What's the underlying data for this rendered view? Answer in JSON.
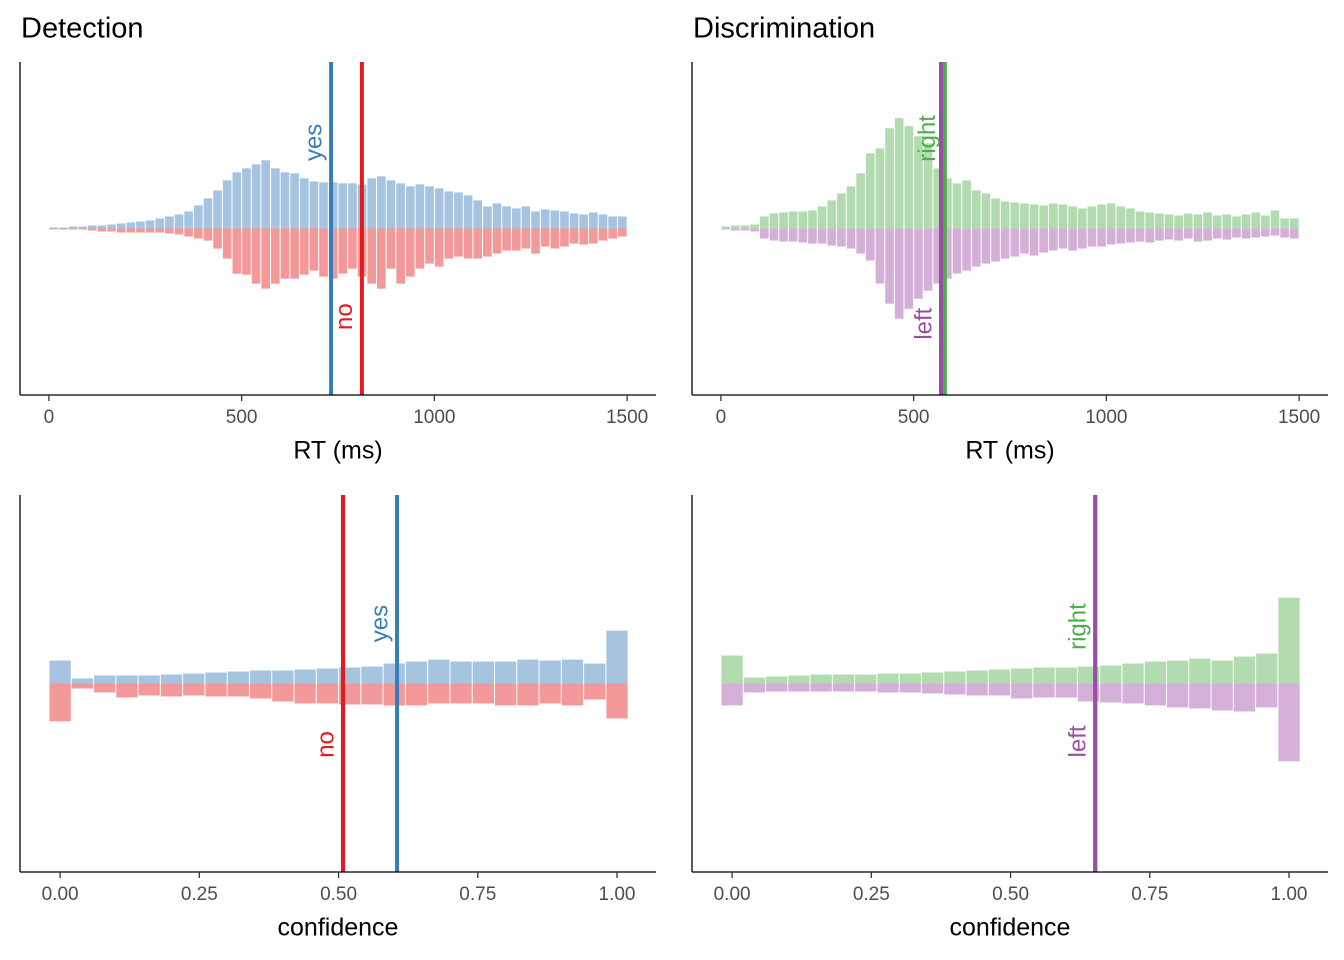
{
  "chart_data": [
    {
      "type": "histogram",
      "title": "Detection",
      "xlabel": "RT (ms)",
      "xlim": [
        -75,
        1575
      ],
      "xticks": [
        0,
        500,
        1000,
        1500
      ],
      "ylim": [
        -166,
        166
      ],
      "bins": [
        0,
        25,
        50,
        75,
        100,
        125,
        150,
        175,
        200,
        225,
        250,
        275,
        300,
        325,
        350,
        375,
        400,
        425,
        450,
        475,
        500,
        525,
        550,
        575,
        600,
        625,
        650,
        675,
        700,
        725,
        750,
        775,
        800,
        825,
        850,
        875,
        900,
        925,
        950,
        975,
        1000,
        1025,
        1050,
        1075,
        1100,
        1125,
        1150,
        1175,
        1200,
        1225,
        1250,
        1275,
        1300,
        1325,
        1350,
        1375,
        1400,
        1425,
        1450,
        1475,
        1500
      ],
      "series": [
        {
          "name": "yes",
          "color": "#377eb8",
          "bar_color": "#a6c4e0",
          "reference": 732,
          "values": [
            1,
            1,
            2,
            2,
            3,
            3,
            4,
            5,
            6,
            7,
            8,
            10,
            12,
            14,
            17,
            23,
            30,
            38,
            48,
            56,
            60,
            64,
            68,
            60,
            56,
            55,
            50,
            47,
            46,
            46,
            45,
            45,
            44,
            50,
            52,
            48,
            45,
            42,
            44,
            42,
            40,
            37,
            36,
            33,
            28,
            22,
            25,
            22,
            20,
            22,
            17,
            19,
            18,
            17,
            15,
            14,
            16,
            14,
            12,
            12
          ]
        },
        {
          "name": "no",
          "color": "#e41a1c",
          "bar_color": "#f4999a",
          "reference": 812,
          "values": [
            -1,
            -1,
            -1,
            -1,
            -2,
            -3,
            -3,
            -4,
            -4,
            -4,
            -4,
            -4,
            -5,
            -6,
            -8,
            -10,
            -12,
            -20,
            -30,
            -45,
            -46,
            -55,
            -60,
            -55,
            -50,
            -50,
            -46,
            -42,
            -48,
            -50,
            -45,
            -40,
            -48,
            -55,
            -60,
            -40,
            -55,
            -48,
            -40,
            -35,
            -38,
            -30,
            -28,
            -30,
            -30,
            -28,
            -25,
            -22,
            -22,
            -20,
            -25,
            -18,
            -20,
            -18,
            -15,
            -16,
            -15,
            -12,
            -10,
            -8
          ]
        }
      ]
    },
    {
      "type": "histogram",
      "title": "Discrimination",
      "xlabel": "RT (ms)",
      "xlim": [
        -75,
        1575
      ],
      "xticks": [
        0,
        500,
        1000,
        1500
      ],
      "ylim": [
        -166,
        166
      ],
      "bins": [
        0,
        25,
        50,
        75,
        100,
        125,
        150,
        175,
        200,
        225,
        250,
        275,
        300,
        325,
        350,
        375,
        400,
        425,
        450,
        475,
        500,
        525,
        550,
        575,
        600,
        625,
        650,
        675,
        700,
        725,
        750,
        775,
        800,
        825,
        850,
        875,
        900,
        925,
        950,
        975,
        1000,
        1025,
        1050,
        1075,
        1100,
        1125,
        1150,
        1175,
        1200,
        1225,
        1250,
        1275,
        1300,
        1325,
        1350,
        1375,
        1400,
        1425,
        1450,
        1475,
        1500
      ],
      "series": [
        {
          "name": "right",
          "color": "#4daf4a",
          "bar_color": "#b2dcb0",
          "reference": 581,
          "values": [
            2,
            3,
            3,
            4,
            12,
            15,
            16,
            17,
            17,
            18,
            22,
            28,
            35,
            42,
            55,
            75,
            80,
            100,
            110,
            102,
            92,
            85,
            60,
            50,
            45,
            48,
            38,
            35,
            30,
            27,
            26,
            25,
            24,
            23,
            25,
            24,
            22,
            20,
            22,
            24,
            25,
            22,
            20,
            17,
            16,
            15,
            14,
            13,
            15,
            14,
            16,
            13,
            14,
            12,
            14,
            16,
            13,
            18,
            10,
            10
          ]
        },
        {
          "name": "left",
          "color": "#984ea3",
          "bar_color": "#d4b0d9",
          "reference": 571,
          "values": [
            -1,
            -2,
            -2,
            -3,
            -10,
            -12,
            -13,
            -13,
            -14,
            -15,
            -15,
            -17,
            -18,
            -20,
            -25,
            -32,
            -55,
            -75,
            -90,
            -80,
            -70,
            -62,
            -55,
            -50,
            -45,
            -42,
            -38,
            -35,
            -33,
            -30,
            -28,
            -25,
            -27,
            -24,
            -22,
            -20,
            -22,
            -20,
            -18,
            -18,
            -16,
            -15,
            -14,
            -13,
            -14,
            -12,
            -11,
            -12,
            -10,
            -13,
            -12,
            -10,
            -11,
            -9,
            -10,
            -9,
            -8,
            -7,
            -9,
            -10
          ]
        }
      ]
    },
    {
      "type": "histogram",
      "xlabel": "confidence",
      "xlim": [
        -0.072,
        1.07
      ],
      "xticks": [
        {
          "value": 0,
          "label": "0.00"
        },
        0.25,
        {
          "value": 0.5,
          "label": "0.50"
        },
        0.75,
        {
          "value": 1,
          "label": "1.00"
        }
      ],
      "ylim": [
        -189,
        189
      ],
      "bins": [
        -0.02,
        0.02,
        0.06,
        0.1,
        0.14,
        0.18,
        0.22,
        0.26,
        0.3,
        0.34,
        0.38,
        0.42,
        0.46,
        0.5,
        0.54,
        0.58,
        0.62,
        0.66,
        0.7,
        0.74,
        0.78,
        0.82,
        0.86,
        0.9,
        0.94,
        0.98,
        1.02
      ],
      "series": [
        {
          "name": "yes",
          "color": "#377eb8",
          "bar_color": "#a6c4e0",
          "reference": 0.605,
          "values": [
            23,
            5,
            8,
            8,
            8,
            9,
            10,
            11,
            12,
            13,
            13,
            14,
            15,
            16,
            17,
            20,
            22,
            24,
            22,
            22,
            22,
            24,
            23,
            24,
            20,
            53
          ]
        },
        {
          "name": "no",
          "color": "#e41a1c",
          "bar_color": "#f4999a",
          "reference": 0.508,
          "values": [
            -38,
            -5,
            -9,
            -14,
            -12,
            -13,
            -12,
            -13,
            -13,
            -15,
            -18,
            -20,
            -20,
            -21,
            -21,
            -22,
            -22,
            -20,
            -20,
            -20,
            -22,
            -22,
            -20,
            -22,
            -16,
            -35
          ]
        }
      ]
    },
    {
      "type": "histogram",
      "xlabel": "confidence",
      "xlim": [
        -0.072,
        1.07
      ],
      "xticks": [
        {
          "value": 0,
          "label": "0.00"
        },
        0.25,
        {
          "value": 0.5,
          "label": "0.50"
        },
        0.75,
        {
          "value": 1,
          "label": "1.00"
        }
      ],
      "ylim": [
        -189,
        189
      ],
      "bins": [
        -0.02,
        0.02,
        0.06,
        0.1,
        0.14,
        0.18,
        0.22,
        0.26,
        0.3,
        0.34,
        0.38,
        0.42,
        0.46,
        0.5,
        0.54,
        0.58,
        0.62,
        0.66,
        0.7,
        0.74,
        0.78,
        0.82,
        0.86,
        0.9,
        0.94,
        0.98,
        1.02
      ],
      "series": [
        {
          "name": "right",
          "color": "#4daf4a",
          "bar_color": "#b2dcb0",
          "reference": 0.652,
          "values": [
            28,
            6,
            7,
            8,
            9,
            9,
            9,
            10,
            10,
            11,
            12,
            13,
            14,
            15,
            16,
            16,
            17,
            18,
            20,
            22,
            23,
            25,
            23,
            27,
            30,
            86
          ]
        },
        {
          "name": "left",
          "color": "#984ea3",
          "bar_color": "#d4b0d9",
          "reference": 0.652,
          "values": [
            -22,
            -9,
            -8,
            -8,
            -8,
            -8,
            -8,
            -9,
            -9,
            -10,
            -11,
            -12,
            -12,
            -15,
            -14,
            -14,
            -18,
            -19,
            -20,
            -22,
            -24,
            -25,
            -27,
            -28,
            -24,
            -78
          ]
        }
      ]
    }
  ]
}
